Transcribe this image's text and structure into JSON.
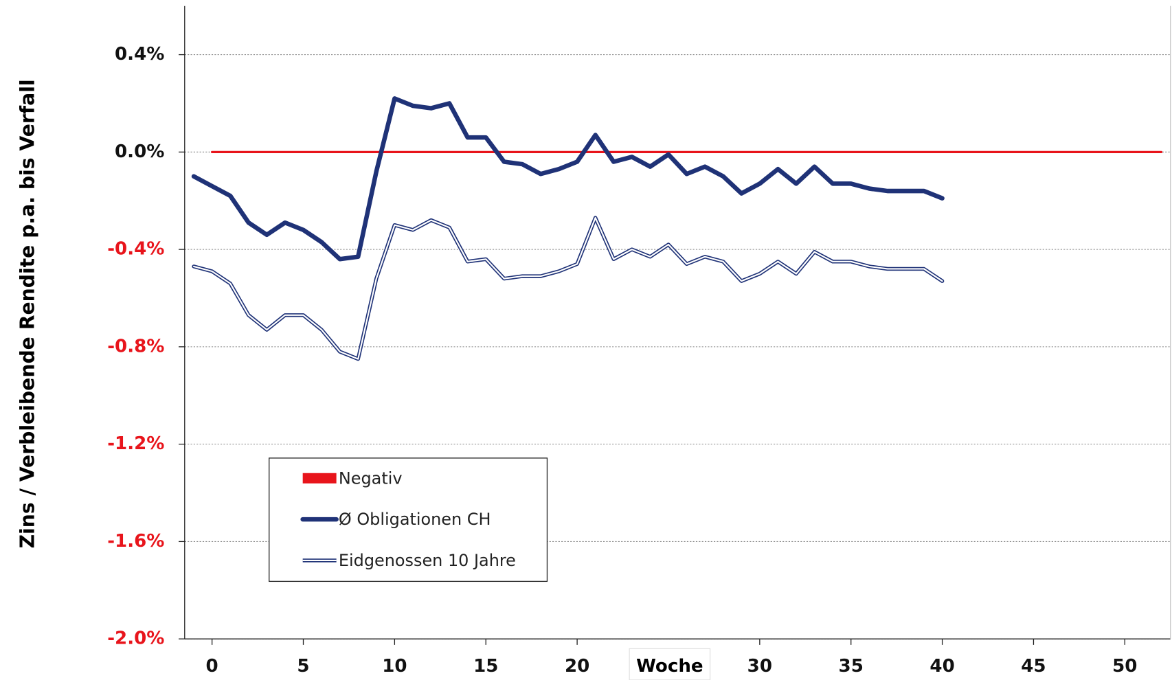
{
  "chart_data": {
    "type": "line",
    "y_label": "Zins / Verbleibende Rendite p.a. bis Verfall",
    "x_label": "Woche",
    "xlim": [
      -1.5,
      52.5
    ],
    "xticks": [
      0,
      5,
      10,
      15,
      20,
      30,
      35,
      40,
      45,
      50
    ],
    "ylim": [
      -2.0,
      0.6
    ],
    "yticks": [
      {
        "value": -2.0,
        "label": "-2.0%"
      },
      {
        "value": -1.6,
        "label": "-1.6%"
      },
      {
        "value": -1.2,
        "label": "-1.2%"
      },
      {
        "value": -0.8,
        "label": "-0.8%"
      },
      {
        "value": -0.4,
        "label": "-0.4%"
      },
      {
        "value": 0.0,
        "label": "0.0%"
      },
      {
        "value": 0.4,
        "label": "0.4%"
      }
    ],
    "negative_tick_color": "#e8141b",
    "grid": true,
    "series": [
      {
        "name": "Negativ",
        "color": "#e8141b",
        "style": "solid",
        "width": 3,
        "x": [
          0,
          52
        ],
        "values": [
          0,
          0
        ]
      },
      {
        "name": "Ø Obligationen CH",
        "color": "#1f3277",
        "style": "solid",
        "width": 6,
        "x": [
          -1,
          0,
          1,
          2,
          3,
          4,
          5,
          6,
          7,
          8,
          9,
          10,
          11,
          12,
          13,
          14,
          15,
          16,
          17,
          18,
          19,
          20,
          21,
          22,
          23,
          24,
          25,
          26,
          27,
          28,
          29,
          30,
          31,
          32,
          33,
          34,
          35,
          36,
          37,
          38,
          39,
          40
        ],
        "values": [
          -0.1,
          -0.14,
          -0.18,
          -0.29,
          -0.34,
          -0.29,
          -0.32,
          -0.37,
          -0.44,
          -0.43,
          -0.08,
          0.22,
          0.19,
          0.18,
          0.2,
          0.06,
          0.06,
          -0.04,
          -0.05,
          -0.09,
          -0.07,
          -0.04,
          0.07,
          -0.04,
          -0.02,
          -0.06,
          -0.01,
          -0.09,
          -0.06,
          -0.1,
          -0.17,
          -0.13,
          -0.07,
          -0.13,
          -0.06,
          -0.13,
          -0.13,
          -0.15,
          -0.16,
          -0.16,
          -0.16,
          -0.19
        ]
      },
      {
        "name": "Eidgenossen 10 Jahre",
        "color": "#1f3277",
        "style": "double",
        "width": 5,
        "x": [
          -1,
          0,
          1,
          2,
          3,
          4,
          5,
          6,
          7,
          8,
          9,
          10,
          11,
          12,
          13,
          14,
          15,
          16,
          17,
          18,
          19,
          20,
          21,
          22,
          23,
          24,
          25,
          26,
          27,
          28,
          29,
          30,
          31,
          32,
          33,
          34,
          35,
          36,
          37,
          38,
          39,
          40
        ],
        "values": [
          -0.47,
          -0.49,
          -0.54,
          -0.67,
          -0.73,
          -0.67,
          -0.67,
          -0.73,
          -0.82,
          -0.85,
          -0.52,
          -0.3,
          -0.32,
          -0.28,
          -0.31,
          -0.45,
          -0.44,
          -0.52,
          -0.51,
          -0.51,
          -0.49,
          -0.46,
          -0.27,
          -0.44,
          -0.4,
          -0.43,
          -0.38,
          -0.46,
          -0.43,
          -0.45,
          -0.53,
          -0.5,
          -0.45,
          -0.5,
          -0.41,
          -0.45,
          -0.45,
          -0.47,
          -0.48,
          -0.48,
          -0.48,
          -0.53
        ]
      }
    ]
  }
}
